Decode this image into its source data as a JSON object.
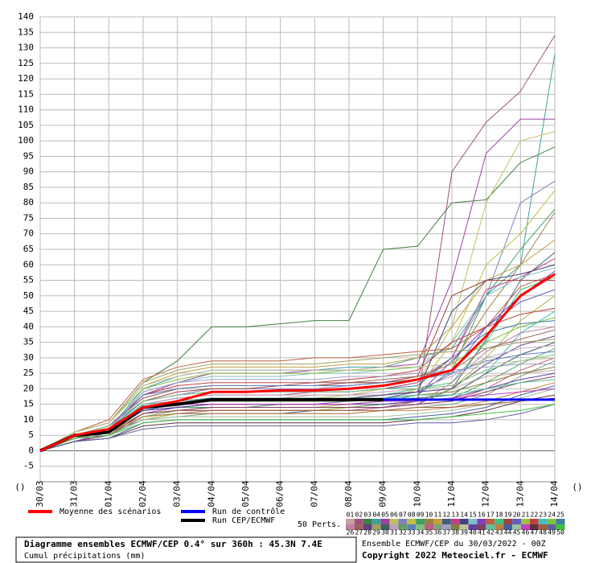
{
  "chart_data": {
    "type": "line",
    "categories": [
      "30/03",
      "31/03",
      "01/04",
      "02/04",
      "03/04",
      "04/04",
      "05/04",
      "06/04",
      "07/04",
      "08/04",
      "09/04",
      "10/04",
      "11/04",
      "12/04",
      "13/04",
      "14/04"
    ],
    "ylim": [
      -10,
      140
    ],
    "yticks": [
      -5,
      0,
      5,
      10,
      15,
      20,
      25,
      30,
      35,
      40,
      45,
      50,
      55,
      60,
      65,
      70,
      75,
      80,
      85,
      90,
      95,
      100,
      105,
      110,
      115,
      120,
      125,
      130,
      135,
      140
    ],
    "grid": true,
    "corner_labels": [
      "()",
      "()"
    ],
    "mean": {
      "name": "Moyenne des scénarios",
      "color": "#ff0000",
      "values": [
        0,
        5,
        7,
        14,
        16,
        19,
        19,
        19.5,
        19.5,
        20,
        21,
        23,
        26,
        37,
        50,
        57
      ]
    },
    "control": {
      "name": "Run de contrôle",
      "color": "#0000ff",
      "values": [
        0,
        5,
        6,
        14,
        15,
        16.5,
        16.5,
        16.5,
        16.5,
        16.5,
        16.5,
        16.5,
        16.5,
        16.5,
        16.5,
        16.5
      ]
    },
    "deterministic": {
      "name": "Run CEP/ECMWF",
      "color": "#000000",
      "values": [
        0,
        5,
        6,
        14,
        15,
        16.5,
        16.5,
        16.5,
        16.5,
        16.5,
        16.5,
        null,
        null,
        null,
        null,
        null
      ]
    },
    "perts_label": "50 Perts.",
    "series": [
      {
        "name": "01",
        "color": "#c8a0a0",
        "values": [
          0,
          5,
          7,
          15,
          16,
          17,
          17,
          17,
          18,
          18,
          18,
          19,
          20,
          24,
          25,
          26
        ]
      },
      {
        "name": "02",
        "color": "#a05080",
        "values": [
          0,
          3,
          6,
          10,
          12,
          13,
          13,
          13,
          13,
          14,
          14,
          16,
          90,
          106,
          116,
          134
        ]
      },
      {
        "name": "03",
        "color": "#408040",
        "values": [
          0,
          6,
          9,
          22,
          29,
          40,
          40,
          41,
          42,
          42,
          65,
          66,
          80,
          81,
          93,
          98
        ]
      },
      {
        "name": "04",
        "color": "#40a0a0",
        "values": [
          0,
          4,
          7,
          20,
          24,
          26,
          26,
          26,
          26,
          27,
          27,
          30,
          33,
          50,
          60,
          128
        ]
      },
      {
        "name": "05",
        "color": "#a040a0",
        "values": [
          0,
          5,
          8,
          18,
          22,
          25,
          25,
          25,
          26,
          26,
          27,
          28,
          55,
          96,
          107,
          107
        ]
      },
      {
        "name": "06",
        "color": "#c0c060",
        "values": [
          0,
          4,
          6,
          14,
          15,
          16,
          16,
          17,
          17,
          18,
          20,
          22,
          40,
          80,
          100,
          103
        ]
      },
      {
        "name": "07",
        "color": "#8080c0",
        "values": [
          0,
          5,
          7,
          16,
          18,
          20,
          20,
          20,
          20,
          21,
          22,
          23,
          30,
          50,
          80,
          87
        ]
      },
      {
        "name": "08",
        "color": "#c0c040",
        "values": [
          0,
          3,
          5,
          12,
          13,
          14,
          14,
          14,
          14,
          15,
          16,
          20,
          35,
          60,
          70,
          84
        ]
      },
      {
        "name": "09",
        "color": "#40a060",
        "values": [
          0,
          4,
          6,
          13,
          14,
          14,
          14,
          15,
          15,
          15,
          16,
          18,
          26,
          50,
          65,
          78
        ]
      },
      {
        "name": "10",
        "color": "#a08040",
        "values": [
          0,
          5,
          8,
          17,
          20,
          21,
          21,
          21,
          21,
          22,
          22,
          24,
          28,
          45,
          60,
          77
        ]
      },
      {
        "name": "11",
        "color": "#c0a040",
        "values": [
          0,
          6,
          9,
          21,
          25,
          27,
          27,
          27,
          27,
          28,
          28,
          30,
          40,
          55,
          60,
          68
        ]
      },
      {
        "name": "12",
        "color": "#406080",
        "values": [
          0,
          3,
          5,
          11,
          12,
          12,
          12,
          12,
          13,
          13,
          14,
          15,
          20,
          36,
          55,
          64
        ]
      },
      {
        "name": "13",
        "color": "#c04080",
        "values": [
          0,
          4,
          6,
          15,
          17,
          18,
          18,
          18,
          19,
          19,
          20,
          22,
          30,
          52,
          56,
          62
        ]
      },
      {
        "name": "14",
        "color": "#404080",
        "values": [
          0,
          5,
          7,
          14,
          15,
          16,
          16,
          16,
          16,
          17,
          18,
          19,
          45,
          55,
          57,
          60
        ]
      },
      {
        "name": "15",
        "color": "#80c0c0",
        "values": [
          0,
          4,
          7,
          19,
          22,
          24,
          24,
          24,
          25,
          25,
          26,
          27,
          35,
          50,
          56,
          59
        ]
      },
      {
        "name": "16",
        "color": "#8040c0",
        "values": [
          0,
          3,
          6,
          12,
          14,
          15,
          15,
          15,
          15,
          16,
          17,
          18,
          29,
          40,
          50,
          58
        ]
      },
      {
        "name": "17",
        "color": "#c06040",
        "values": [
          0,
          6,
          10,
          23,
          27,
          29,
          29,
          29,
          30,
          30,
          31,
          32,
          33,
          40,
          53,
          57
        ]
      },
      {
        "name": "18",
        "color": "#40c080",
        "values": [
          0,
          4,
          6,
          14,
          16,
          17,
          17,
          17,
          17,
          17,
          18,
          20,
          22,
          35,
          52,
          56
        ]
      },
      {
        "name": "19",
        "color": "#a04040",
        "values": [
          0,
          5,
          8,
          16,
          19,
          20,
          20,
          21,
          21,
          22,
          22,
          24,
          50,
          55,
          55,
          55
        ]
      },
      {
        "name": "20",
        "color": "#6060c0",
        "values": [
          0,
          4,
          6,
          13,
          15,
          16,
          16,
          16,
          16,
          16,
          17,
          19,
          25,
          40,
          48,
          52
        ]
      },
      {
        "name": "21",
        "color": "#a0c040",
        "values": [
          0,
          3,
          5,
          10,
          12,
          13,
          13,
          13,
          13,
          14,
          15,
          16,
          20,
          30,
          42,
          50
        ]
      },
      {
        "name": "22",
        "color": "#c04040",
        "values": [
          0,
          5,
          7,
          18,
          21,
          22,
          22,
          22,
          22,
          23,
          24,
          26,
          35,
          40,
          44,
          46
        ]
      },
      {
        "name": "23",
        "color": "#40c0c0",
        "values": [
          0,
          4,
          6,
          14,
          15,
          16,
          16,
          16,
          16,
          16,
          17,
          17,
          18,
          25,
          38,
          45
        ]
      },
      {
        "name": "24",
        "color": "#80c040",
        "values": [
          0,
          6,
          9,
          20,
          23,
          25,
          25,
          25,
          25,
          26,
          26,
          27,
          28,
          35,
          40,
          43
        ]
      },
      {
        "name": "25",
        "color": "#4080a0",
        "values": [
          0,
          4,
          7,
          16,
          18,
          19,
          19,
          19,
          19,
          19,
          20,
          21,
          30,
          38,
          41,
          42
        ]
      },
      {
        "name": "26",
        "color": "#c080a0",
        "values": [
          0,
          3,
          5,
          11,
          12,
          13,
          13,
          13,
          13,
          13,
          14,
          15,
          22,
          32,
          38,
          40
        ]
      },
      {
        "name": "27",
        "color": "#a06060",
        "values": [
          0,
          5,
          8,
          17,
          20,
          21,
          21,
          21,
          22,
          22,
          23,
          24,
          26,
          33,
          36,
          39
        ]
      },
      {
        "name": "28",
        "color": "#604080",
        "values": [
          0,
          4,
          6,
          14,
          16,
          17,
          17,
          17,
          17,
          17,
          18,
          19,
          20,
          28,
          34,
          37
        ]
      },
      {
        "name": "29",
        "color": "#a0a060",
        "values": [
          0,
          6,
          9,
          22,
          26,
          28,
          28,
          28,
          28,
          29,
          30,
          31,
          32,
          33,
          35,
          36
        ]
      },
      {
        "name": "30",
        "color": "#406060",
        "values": [
          0,
          4,
          6,
          13,
          14,
          15,
          15,
          15,
          15,
          15,
          16,
          17,
          18,
          25,
          31,
          35
        ]
      },
      {
        "name": "31",
        "color": "#c0a0c0",
        "values": [
          0,
          5,
          7,
          15,
          17,
          18,
          18,
          18,
          18,
          18,
          19,
          20,
          24,
          30,
          33,
          34
        ]
      },
      {
        "name": "32",
        "color": "#60a060",
        "values": [
          0,
          3,
          5,
          11,
          13,
          14,
          14,
          14,
          14,
          14,
          15,
          16,
          17,
          22,
          28,
          33
        ]
      },
      {
        "name": "33",
        "color": "#6080c0",
        "values": [
          0,
          4,
          7,
          18,
          20,
          21,
          21,
          21,
          21,
          21,
          22,
          23,
          25,
          29,
          31,
          32
        ]
      },
      {
        "name": "34",
        "color": "#80c080",
        "values": [
          0,
          5,
          8,
          16,
          18,
          19,
          19,
          19,
          19,
          19,
          20,
          20,
          21,
          26,
          29,
          31
        ]
      },
      {
        "name": "35",
        "color": "#c06080",
        "values": [
          0,
          4,
          6,
          12,
          13,
          13,
          13,
          13,
          13,
          13,
          14,
          15,
          16,
          20,
          26,
          30
        ]
      },
      {
        "name": "36",
        "color": "#80a080",
        "values": [
          0,
          3,
          5,
          10,
          11,
          12,
          12,
          12,
          12,
          12,
          13,
          14,
          15,
          18,
          24,
          29
        ]
      },
      {
        "name": "37",
        "color": "#a0a0c0",
        "values": [
          0,
          5,
          7,
          19,
          22,
          23,
          23,
          23,
          23,
          24,
          24,
          25,
          26,
          27,
          28,
          28
        ]
      },
      {
        "name": "38",
        "color": "#808040",
        "values": [
          0,
          4,
          6,
          14,
          15,
          16,
          16,
          16,
          16,
          16,
          17,
          18,
          19,
          22,
          25,
          27
        ]
      },
      {
        "name": "39",
        "color": "#c0c0a0",
        "values": [
          0,
          6,
          9,
          21,
          24,
          26,
          26,
          26,
          26,
          26,
          27,
          27,
          28,
          28,
          29,
          30
        ]
      },
      {
        "name": "40",
        "color": "#6040a0",
        "values": [
          0,
          4,
          6,
          13,
          14,
          15,
          15,
          15,
          15,
          15,
          15,
          16,
          17,
          20,
          23,
          25
        ]
      },
      {
        "name": "41",
        "color": "#804060",
        "values": [
          0,
          3,
          5,
          12,
          13,
          14,
          14,
          14,
          14,
          14,
          14,
          15,
          16,
          19,
          22,
          24
        ]
      },
      {
        "name": "42",
        "color": "#60c0a0",
        "values": [
          0,
          5,
          7,
          15,
          16,
          17,
          17,
          17,
          17,
          17,
          17,
          18,
          18,
          20,
          22,
          23
        ]
      },
      {
        "name": "43",
        "color": "#c08040",
        "values": [
          0,
          4,
          6,
          11,
          12,
          12,
          12,
          12,
          12,
          12,
          13,
          13,
          14,
          16,
          19,
          22
        ]
      },
      {
        "name": "44",
        "color": "#4060a0",
        "values": [
          0,
          3,
          4,
          9,
          10,
          10,
          10,
          10,
          10,
          10,
          10,
          11,
          12,
          14,
          18,
          21
        ]
      },
      {
        "name": "45",
        "color": "#a0c0a0",
        "values": [
          0,
          4,
          5,
          10,
          11,
          11,
          11,
          11,
          11,
          11,
          11,
          12,
          13,
          15,
          17,
          20
        ]
      },
      {
        "name": "46",
        "color": "#c040c0",
        "values": [
          0,
          5,
          7,
          14,
          15,
          15,
          15,
          15,
          15,
          15,
          16,
          16,
          17,
          18,
          19,
          20
        ]
      },
      {
        "name": "47",
        "color": "#603040",
        "values": [
          0,
          3,
          4,
          8,
          9,
          9,
          9,
          9,
          9,
          9,
          9,
          10,
          11,
          13,
          16,
          18
        ]
      },
      {
        "name": "48",
        "color": "#a06040",
        "values": [
          0,
          4,
          6,
          12,
          13,
          13,
          13,
          13,
          13,
          13,
          13,
          14,
          14,
          15,
          16,
          17
        ]
      },
      {
        "name": "49",
        "color": "#6060a0",
        "values": [
          0,
          3,
          4,
          7,
          8,
          8,
          8,
          8,
          8,
          8,
          8,
          9,
          9,
          10,
          12,
          15
        ]
      },
      {
        "name": "50",
        "color": "#40c040",
        "values": [
          0,
          4,
          5,
          9,
          10,
          10,
          10,
          10,
          10,
          10,
          10,
          10,
          11,
          12,
          13,
          15
        ]
      }
    ],
    "info_title": "Diagramme ensembles ECMWF/CEP 0.4° sur 360h : 45.3N 7.4E",
    "info_subtitle": "Cumul précipitations (mm)",
    "run_info": "Ensemble ECMWF/CEP du 30/03/2022 - 00Z",
    "copyright": "Copyright 2022 Meteociel.fr - ECMWF"
  }
}
